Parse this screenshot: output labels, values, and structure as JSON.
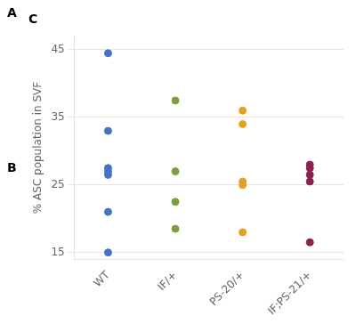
{
  "chart_data": {
    "type": "strip",
    "title": "C",
    "annotations": [
      "A",
      "B"
    ],
    "y_label": "% ASC population in SVF",
    "categories": [
      "WT",
      "IF/+",
      "PS-20/+",
      "IF;PS-21/+"
    ],
    "values": [
      [
        15.0,
        21.0,
        26.5,
        27.0,
        27.5,
        33.0,
        44.5
      ],
      [
        18.5,
        22.5,
        27.0,
        37.5
      ],
      [
        18.0,
        25.0,
        25.5,
        34.0,
        36.0
      ],
      [
        16.5,
        25.5,
        26.5,
        27.5,
        28.0
      ]
    ],
    "colors": [
      "#4472C4",
      "#7B9E3E",
      "#E5A020",
      "#8B2252"
    ],
    "ylim": [
      14,
      47
    ],
    "yticks": [
      15,
      25,
      35,
      45
    ],
    "grid": "y"
  }
}
